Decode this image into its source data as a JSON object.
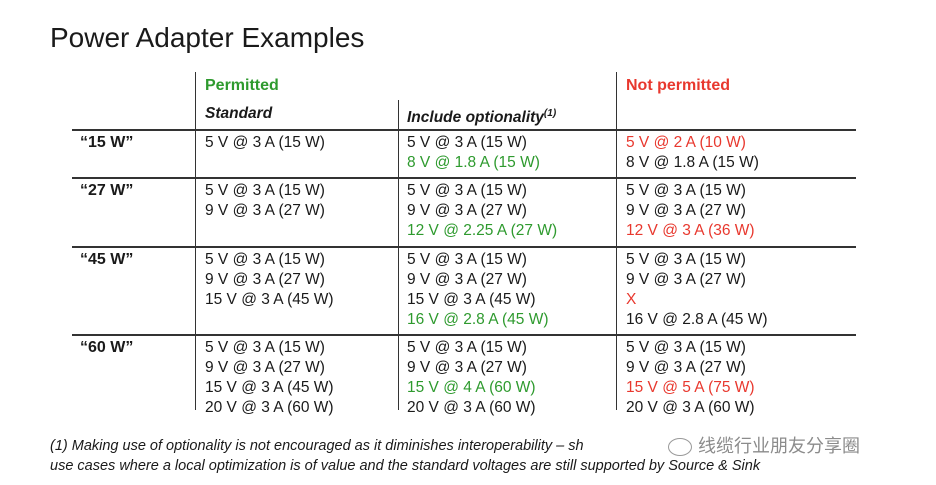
{
  "title": "Power Adapter Examples",
  "headers": {
    "permitted": "Permitted",
    "not_permitted": "Not permitted",
    "standard": "Standard",
    "include_optionality": "Include optionality",
    "include_optionality_sup": "(1)"
  },
  "rows": [
    {
      "label": "“15 W”",
      "standard": [
        {
          "text": "5 V @ 3 A (15 W)",
          "color": "normal"
        }
      ],
      "optional": [
        {
          "text": "5 V @ 3 A (15 W)",
          "color": "normal"
        },
        {
          "text": "8 V @ 1.8 A (15 W)",
          "color": "green"
        }
      ],
      "not_permitted": [
        {
          "text": "5 V @ 2 A (10 W)",
          "color": "red"
        },
        {
          "text": "8 V @ 1.8 A (15 W)",
          "color": "normal"
        }
      ]
    },
    {
      "label": "“27 W”",
      "standard": [
        {
          "text": "5 V @ 3 A (15 W)",
          "color": "normal"
        },
        {
          "text": "9 V @ 3 A (27 W)",
          "color": "normal"
        }
      ],
      "optional": [
        {
          "text": "5 V @ 3 A (15 W)",
          "color": "normal"
        },
        {
          "text": "9 V @ 3 A (27 W)",
          "color": "normal"
        },
        {
          "text": "12 V @ 2.25 A (27 W)",
          "color": "green"
        }
      ],
      "not_permitted": [
        {
          "text": "5 V @ 3 A (15 W)",
          "color": "normal"
        },
        {
          "text": "9 V @ 3 A (27 W)",
          "color": "normal"
        },
        {
          "text": "12 V @ 3 A (36 W)",
          "color": "red"
        }
      ]
    },
    {
      "label": "“45 W”",
      "standard": [
        {
          "text": "5 V @ 3 A (15 W)",
          "color": "normal"
        },
        {
          "text": "9 V @ 3 A (27 W)",
          "color": "normal"
        },
        {
          "text": "15 V @ 3 A (45 W)",
          "color": "normal"
        }
      ],
      "optional": [
        {
          "text": "5 V @ 3 A (15 W)",
          "color": "normal"
        },
        {
          "text": "9 V @ 3 A (27 W)",
          "color": "normal"
        },
        {
          "text": "15 V @ 3 A (45 W)",
          "color": "normal"
        },
        {
          "text": "16 V @ 2.8 A (45 W)",
          "color": "green"
        }
      ],
      "not_permitted": [
        {
          "text": "5 V @ 3 A (15 W)",
          "color": "normal"
        },
        {
          "text": "9 V @ 3 A (27 W)",
          "color": "normal"
        },
        {
          "text": "X",
          "color": "red"
        },
        {
          "text": "16 V @ 2.8 A (45 W)",
          "color": "normal"
        }
      ]
    },
    {
      "label": "“60 W”",
      "standard": [
        {
          "text": "5 V @ 3 A (15 W)",
          "color": "normal"
        },
        {
          "text": "9 V @ 3 A (27 W)",
          "color": "normal"
        },
        {
          "text": "15 V @ 3 A (45 W)",
          "color": "normal"
        },
        {
          "text": "20 V @ 3 A (60 W)",
          "color": "normal"
        }
      ],
      "optional": [
        {
          "text": "5 V @ 3 A (15 W)",
          "color": "normal"
        },
        {
          "text": "9 V @ 3 A (27 W)",
          "color": "normal"
        },
        {
          "text": "15 V @ 4 A (60 W)",
          "color": "green"
        },
        {
          "text": "20 V @ 3 A (60 W)",
          "color": "normal"
        }
      ],
      "not_permitted": [
        {
          "text": "5 V @ 3 A (15 W)",
          "color": "normal"
        },
        {
          "text": "9 V @ 3 A (27 W)",
          "color": "normal"
        },
        {
          "text": "15 V @ 5 A (75 W)",
          "color": "red"
        },
        {
          "text": "20 V @ 3 A (60 W)",
          "color": "normal"
        }
      ]
    }
  ],
  "footnote": {
    "line1": "(1) Making use of optionality is not encouraged as it diminishes  interoperability – sh",
    "line2": "use cases where a local optimization is of value and the standard voltages are still supported by Source & Sink"
  },
  "watermark": "线缆行业朋友分享圈",
  "colors": {
    "green": "#2e9a2e",
    "red": "#e8382e",
    "text": "#1a1a1a"
  }
}
